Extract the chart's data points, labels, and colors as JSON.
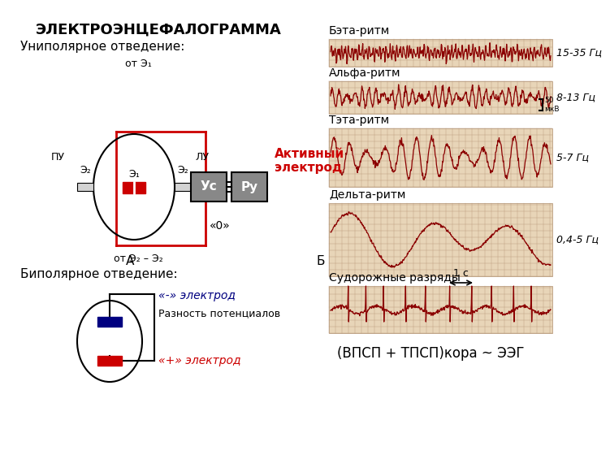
{
  "title": "ЭЛЕКТРОЭНЦЕФАЛОГРАММА",
  "unipolar_label": "Униполярное отведение:",
  "bipolar_label": "Биполярное отведение:",
  "active_electrode_label": "Активный\nэлектрод",
  "zero_label": "«0»",
  "from_e1_label": "от Э₁",
  "from_e2_label": "от Э₂ – Э₂",
  "pu_label": "ПУ",
  "lu_label": "ЛУ",
  "e2_left_label": "Э₂",
  "e2_right_label": "Э₂",
  "e1_label": "Э₁",
  "us_label": "Ус",
  "ry_label": "Ру",
  "label_a": "А",
  "label_b": "Б",
  "neg_electrode_label": "«-» электрод",
  "pos_electrode_label": "«+» электрод",
  "diff_label": "Разность потенциалов",
  "eeg_label": "(ВПСП + ТПСП)кора ~ ЭЭГ",
  "rhythm_labels": [
    "Бэта-ритм",
    "Альфа-ритм",
    "Тэта-ритм",
    "Дельта-ритм",
    "Судорожные разряды"
  ],
  "rhythm_freqs": [
    "15-35 Гц",
    "8-13 Гц",
    "5-7 Гц",
    "0,4-5 Гц",
    ""
  ],
  "scale_label": "50\nмкВ",
  "time_label": "1 с",
  "bg_color": "#ffffff",
  "red_color": "#cc0000",
  "dark_red": "#8b0000",
  "blue_color": "#000080",
  "box_color": "#888888",
  "grid_color": "#c8b4a0",
  "text_color": "#000000"
}
